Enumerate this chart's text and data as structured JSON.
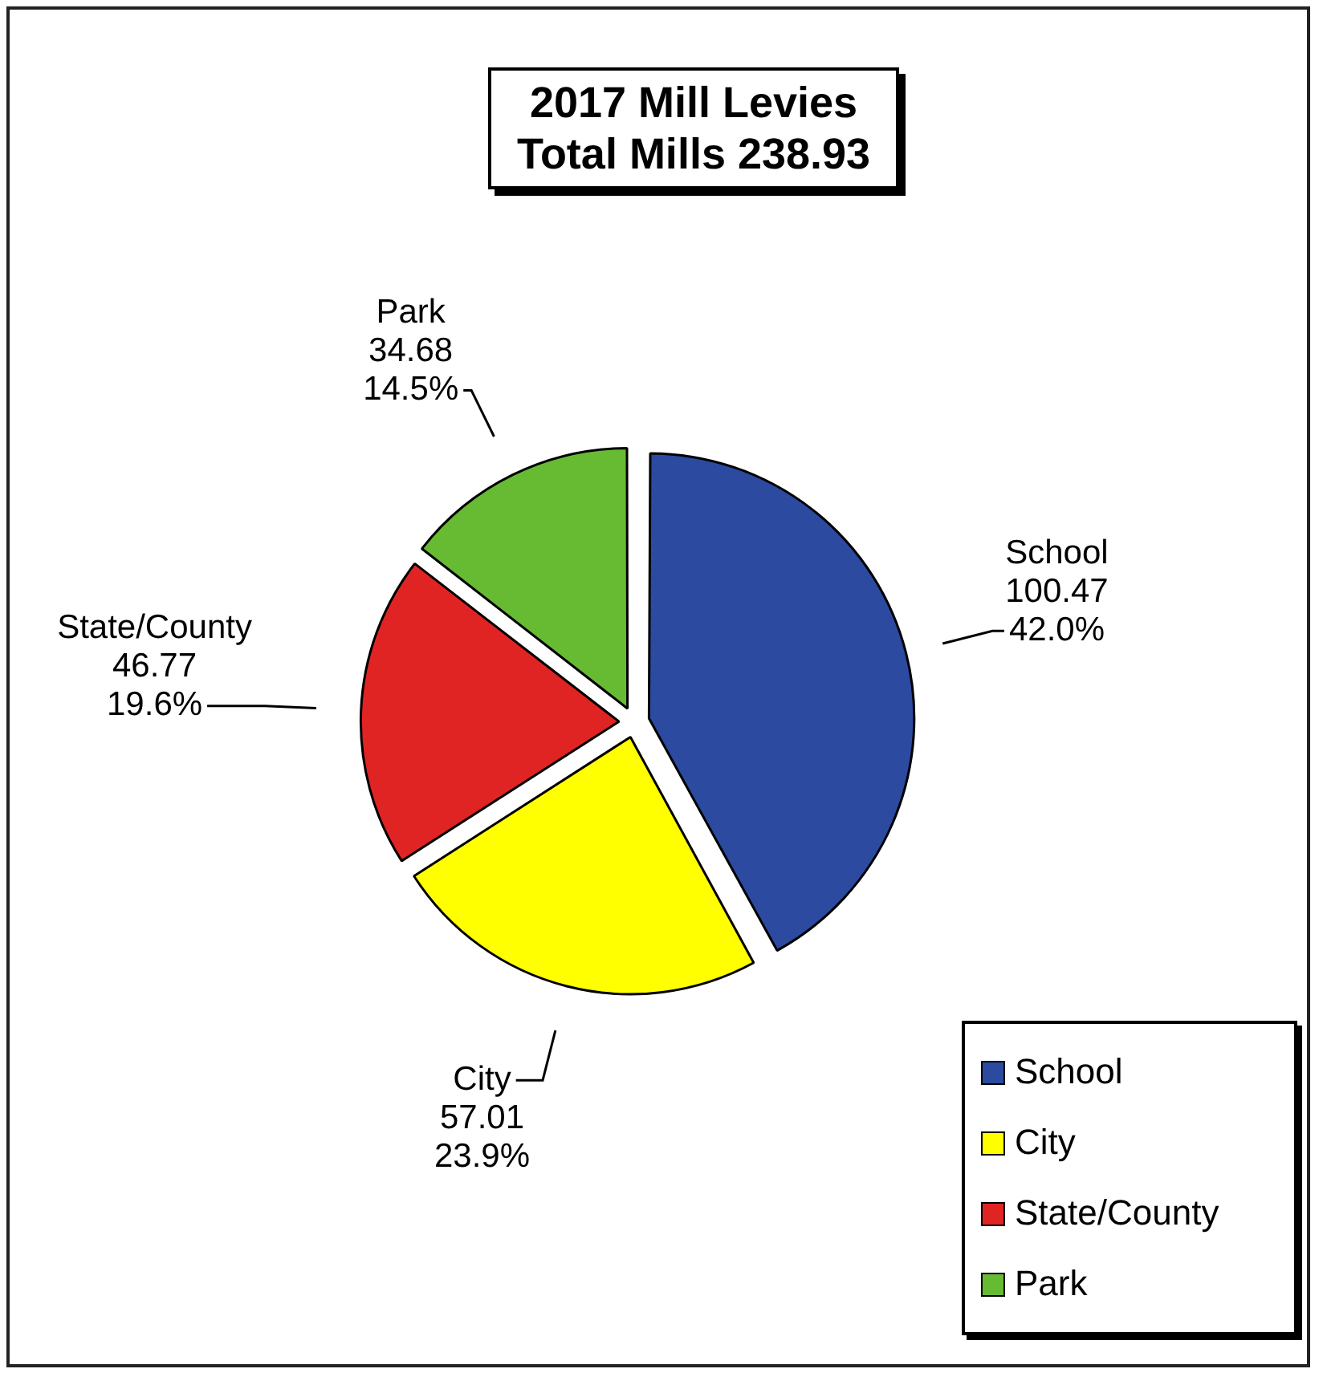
{
  "chart_data": {
    "type": "pie",
    "title": "2017 Mill Levies\nTotal Mills 238.93",
    "categories": [
      "School",
      "City",
      "State/County",
      "Park"
    ],
    "values": [
      100.47,
      57.01,
      46.77,
      34.68
    ],
    "colors": [
      "#2b4aa0",
      "#ffff00",
      "#e02424",
      "#66bb33"
    ],
    "value_labels": [
      "100.47\n42.0%",
      "57.01\n23.9%",
      "46.77\n19.6%",
      "34.68\n14.5%"
    ],
    "legend": "bottom right"
  }
}
